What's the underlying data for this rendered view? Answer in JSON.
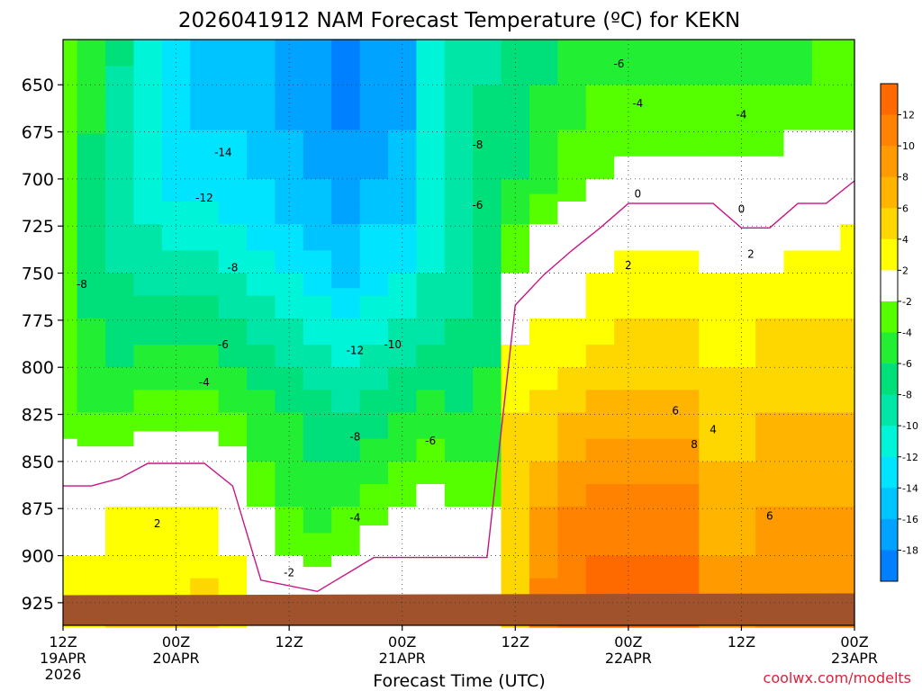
{
  "chart_data": {
    "type": "heatmap",
    "title": "2026041912 NAM Forecast Temperature (ºC) for KEKN",
    "xlabel": "Forecast Time (UTC)",
    "ylabel": "",
    "credit": "coolwx.com/modelts",
    "y_axis": {
      "scale": "pressure-hPa",
      "inverted": true,
      "range": [
        626,
        937
      ],
      "ticks": [
        650,
        675,
        700,
        725,
        750,
        775,
        800,
        825,
        850,
        875,
        900,
        925
      ]
    },
    "x_axis": {
      "range": [
        "2026-04-19T12Z",
        "2026-04-23T00Z"
      ],
      "ticks": [
        {
          "t": "2026-04-19T12Z",
          "label1": "12Z",
          "label2": "19APR",
          "label3": "2026"
        },
        {
          "t": "2026-04-20T00Z",
          "label1": "00Z",
          "label2": "20APR",
          "label3": ""
        },
        {
          "t": "2026-04-20T12Z",
          "label1": "12Z",
          "label2": "",
          "label3": ""
        },
        {
          "t": "2026-04-21T00Z",
          "label1": "00Z",
          "label2": "21APR",
          "label3": ""
        },
        {
          "t": "2026-04-21T12Z",
          "label1": "12Z",
          "label2": "",
          "label3": ""
        },
        {
          "t": "2026-04-22T00Z",
          "label1": "00Z",
          "label2": "22APR",
          "label3": ""
        },
        {
          "t": "2026-04-22T12Z",
          "label1": "12Z",
          "label2": "",
          "label3": ""
        },
        {
          "t": "2026-04-23T00Z",
          "label1": "00Z",
          "label2": "23APR",
          "label3": ""
        }
      ]
    },
    "grid": "dotted",
    "legend": "right",
    "colorbar": {
      "bins": [
        {
          "from": 12,
          "to": 14,
          "color": "#ff6a00"
        },
        {
          "from": 10,
          "to": 12,
          "color": "#ff8200"
        },
        {
          "from": 8,
          "to": 10,
          "color": "#ff9a00"
        },
        {
          "from": 6,
          "to": 8,
          "color": "#ffb400"
        },
        {
          "from": 4,
          "to": 6,
          "color": "#ffd700"
        },
        {
          "from": 2,
          "to": 4,
          "color": "#ffff00"
        },
        {
          "from": -2,
          "to": 2,
          "color": "#ffffff"
        },
        {
          "from": -4,
          "to": -2,
          "color": "#55ff00"
        },
        {
          "from": -6,
          "to": -4,
          "color": "#22ee33"
        },
        {
          "from": -8,
          "to": -6,
          "color": "#00e07a"
        },
        {
          "from": -10,
          "to": -8,
          "color": "#00e6a6"
        },
        {
          "from": -12,
          "to": -10,
          "color": "#00f5d8"
        },
        {
          "from": -14,
          "to": -12,
          "color": "#00e4ff"
        },
        {
          "from": -16,
          "to": -14,
          "color": "#00c4ff"
        },
        {
          "from": -18,
          "to": -16,
          "color": "#00a3ff"
        },
        {
          "from": -20,
          "to": -18,
          "color": "#0080ff"
        }
      ],
      "tick_labels": [
        "12",
        "10",
        "8",
        "6",
        "4",
        "2",
        "-2",
        "-4",
        "-6",
        "-8",
        "-10",
        "-12",
        "-14",
        "-16",
        "-18"
      ]
    },
    "ground_color": "#a0522d",
    "zero_line_color": "#c71585",
    "columns": [
      {
        "t": "2026-04-19T12Z",
        "values": [
          -3,
          -3,
          -3,
          -3,
          -3,
          -4,
          -4,
          -4,
          -3,
          -1,
          1,
          2,
          3
        ]
      },
      {
        "t": "2026-04-19T15Z",
        "values": [
          -5,
          -6,
          -6,
          -7,
          -7,
          -7,
          -6,
          -5,
          -4,
          -1,
          1,
          2,
          3
        ]
      },
      {
        "t": "2026-04-19T18Z",
        "values": [
          -8,
          -9,
          -10,
          -10,
          -9,
          -8,
          -7,
          -6,
          -4,
          -1,
          2,
          3,
          4
        ]
      },
      {
        "t": "2026-04-19T21Z",
        "values": [
          -11,
          -11,
          -12,
          -11,
          -10,
          -9,
          -7,
          -5,
          -3,
          0,
          2,
          3,
          4
        ]
      },
      {
        "t": "2026-04-20T00Z",
        "values": [
          -14,
          -14,
          -14,
          -13,
          -11,
          -9,
          -7,
          -5,
          -3,
          0,
          2,
          3,
          4
        ]
      },
      {
        "t": "2026-04-20T03Z",
        "values": [
          -15,
          -15,
          -14,
          -13,
          -11,
          -9,
          -7,
          -5,
          -3,
          0,
          2,
          3,
          5
        ]
      },
      {
        "t": "2026-04-20T06Z",
        "values": [
          -15,
          -15,
          -14,
          -13,
          -12,
          -10,
          -8,
          -6,
          -4,
          -1,
          1,
          2,
          3
        ]
      },
      {
        "t": "2026-04-20T09Z",
        "values": [
          -16,
          -16,
          -15,
          -14,
          -13,
          -11,
          -9,
          -7,
          -5,
          -4,
          -2,
          -1,
          1
        ]
      },
      {
        "t": "2026-04-20T12Z",
        "values": [
          -17,
          -17,
          -16,
          -15,
          -14,
          -12,
          -10,
          -8,
          -6,
          -5,
          -4,
          -2,
          0
        ]
      },
      {
        "t": "2026-04-20T15Z",
        "values": [
          -18,
          -18,
          -17,
          -16,
          -15,
          -13,
          -11,
          -9,
          -7,
          -6,
          -5,
          -3,
          1
        ]
      },
      {
        "t": "2026-04-20T18Z",
        "values": [
          -19,
          -19,
          -18,
          -17,
          -16,
          -15,
          -12,
          -10,
          -8,
          -6,
          -4,
          -2,
          0
        ]
      },
      {
        "t": "2026-04-20T21Z",
        "values": [
          -18,
          -18,
          -17,
          -16,
          -14,
          -13,
          -11,
          -9,
          -7,
          -5,
          -3,
          0,
          1
        ]
      },
      {
        "t": "2026-04-21T00Z",
        "values": [
          -17,
          -17,
          -16,
          -15,
          -14,
          -12,
          -10,
          -8,
          -6,
          -4,
          -2,
          0,
          1
        ]
      },
      {
        "t": "2026-04-21T03Z",
        "values": [
          -12,
          -11,
          -11,
          -11,
          -11,
          -10,
          -9,
          -7,
          -5,
          -3,
          -1,
          0,
          1
        ]
      },
      {
        "t": "2026-04-21T06Z",
        "values": [
          -10,
          -9,
          -9,
          -9,
          -9,
          -9,
          -8,
          -7,
          -6,
          -4,
          -2,
          0,
          1
        ]
      },
      {
        "t": "2026-04-21T09Z",
        "values": [
          -9,
          -8,
          -8,
          -7,
          -7,
          -7,
          -7,
          -6,
          -5,
          -4,
          -2,
          0,
          1
        ]
      },
      {
        "t": "2026-04-21T12Z",
        "values": [
          -8,
          -7,
          -7,
          -6,
          -4,
          -2,
          1,
          3,
          4,
          5,
          5,
          5,
          5
        ]
      },
      {
        "t": "2026-04-21T15Z",
        "values": [
          -7,
          -6,
          -6,
          -5,
          -2,
          0,
          2,
          3,
          5,
          6,
          8,
          9,
          11
        ]
      },
      {
        "t": "2026-04-21T18Z",
        "values": [
          -6,
          -5,
          -4,
          -3,
          -1,
          1,
          2,
          4,
          6,
          8,
          10,
          11,
          12
        ]
      },
      {
        "t": "2026-04-21T21Z",
        "values": [
          -5,
          -4,
          -4,
          -2,
          0,
          2,
          3,
          5,
          7,
          9,
          11,
          12,
          13
        ]
      },
      {
        "t": "2026-04-22T00Z",
        "values": [
          -5,
          -4,
          -3,
          -1,
          1,
          3,
          4,
          5,
          7,
          9,
          11,
          12,
          13
        ]
      },
      {
        "t": "2026-04-22T03Z",
        "values": [
          -5,
          -4,
          -3,
          -1,
          1,
          3,
          4,
          5,
          7,
          9,
          11,
          12,
          13
        ]
      },
      {
        "t": "2026-04-22T06Z",
        "values": [
          -5,
          -4,
          -3,
          -1,
          1,
          3,
          4,
          5,
          7,
          9,
          11,
          12,
          13
        ]
      },
      {
        "t": "2026-04-22T09Z",
        "values": [
          -5,
          -4,
          -3,
          -1,
          1,
          2,
          3,
          4,
          5,
          6,
          7,
          8,
          9
        ]
      },
      {
        "t": "2026-04-22T12Z",
        "values": [
          -5,
          -4,
          -3,
          -1,
          0,
          2,
          3,
          4,
          5,
          6,
          7,
          8,
          9
        ]
      },
      {
        "t": "2026-04-22T15Z",
        "values": [
          -5,
          -4,
          -3,
          -1,
          0,
          2,
          4,
          5,
          6,
          7,
          8,
          9,
          10
        ]
      },
      {
        "t": "2026-04-22T18Z",
        "values": [
          -5,
          -4,
          -2,
          -1,
          1,
          3,
          4,
          5,
          6,
          7,
          8,
          9,
          10
        ]
      },
      {
        "t": "2026-04-22T21Z",
        "values": [
          -4,
          -3,
          -2,
          -1,
          1,
          3,
          4,
          5,
          6,
          7,
          8,
          9,
          10
        ]
      },
      {
        "t": "2026-04-23T00Z",
        "values": [
          -4,
          -3,
          -2,
          0,
          2,
          3,
          4,
          5,
          6,
          7,
          8,
          9,
          10
        ]
      }
    ],
    "column_levels": [
      640,
      650,
      675,
      700,
      725,
      750,
      775,
      800,
      825,
      850,
      875,
      900,
      925
    ],
    "contour_labels": [
      {
        "text": "-14",
        "t": "2026-04-20T05Z",
        "p": 686
      },
      {
        "text": "-12",
        "t": "2026-04-20T03Z",
        "p": 710
      },
      {
        "text": "-8",
        "t": "2026-04-19T14Z",
        "p": 756
      },
      {
        "text": "-8",
        "t": "2026-04-20T06Z",
        "p": 747
      },
      {
        "text": "-6",
        "t": "2026-04-20T05Z",
        "p": 788
      },
      {
        "text": "-4",
        "t": "2026-04-20T03Z",
        "p": 808
      },
      {
        "text": "2",
        "t": "2026-04-19T22Z",
        "p": 883
      },
      {
        "text": "-12",
        "t": "2026-04-20T19Z",
        "p": 791
      },
      {
        "text": "-10",
        "t": "2026-04-20T23Z",
        "p": 788
      },
      {
        "text": "-8",
        "t": "2026-04-20T19Z",
        "p": 837
      },
      {
        "text": "-6",
        "t": "2026-04-21T03Z",
        "p": 839
      },
      {
        "text": "-4",
        "t": "2026-04-20T19Z",
        "p": 880
      },
      {
        "text": "-2",
        "t": "2026-04-20T12Z",
        "p": 909
      },
      {
        "text": "-8",
        "t": "2026-04-21T08Z",
        "p": 682
      },
      {
        "text": "-6",
        "t": "2026-04-21T08Z",
        "p": 714
      },
      {
        "text": "-6",
        "t": "2026-04-21T23Z",
        "p": 639
      },
      {
        "text": "-4",
        "t": "2026-04-22T01Z",
        "p": 660
      },
      {
        "text": "-4",
        "t": "2026-04-22T12Z",
        "p": 666
      },
      {
        "text": "0",
        "t": "2026-04-22T01Z",
        "p": 708
      },
      {
        "text": "0",
        "t": "2026-04-22T12Z",
        "p": 716
      },
      {
        "text": "2",
        "t": "2026-04-22T00Z",
        "p": 746
      },
      {
        "text": "2",
        "t": "2026-04-22T13Z",
        "p": 740
      },
      {
        "text": "6",
        "t": "2026-04-22T05Z",
        "p": 823
      },
      {
        "text": "4",
        "t": "2026-04-22T09Z",
        "p": 833
      },
      {
        "text": "8",
        "t": "2026-04-22T07Z",
        "p": 841
      },
      {
        "text": "6",
        "t": "2026-04-22T15Z",
        "p": 879
      }
    ]
  }
}
